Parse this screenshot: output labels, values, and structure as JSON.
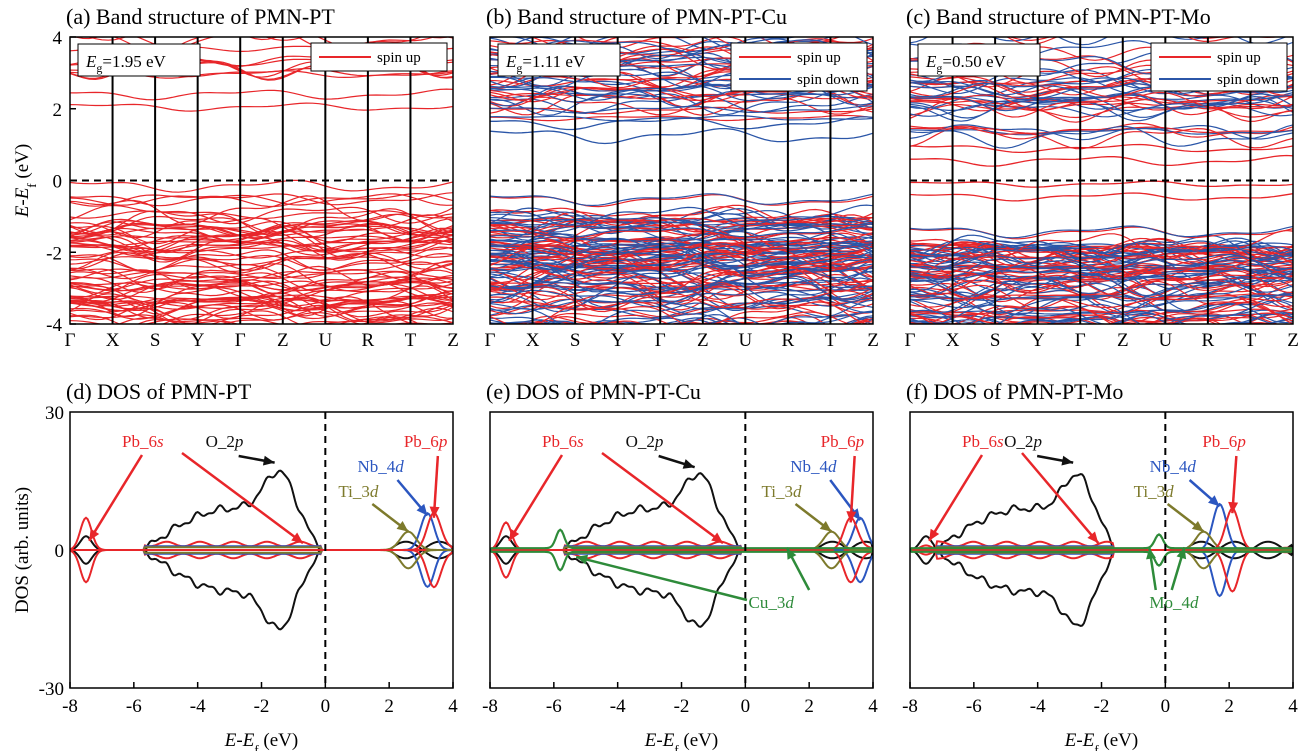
{
  "band": {
    "ylabel": "E-E_f (eV)",
    "kpoints": [
      "Γ",
      "X",
      "S",
      "Y",
      "Γ",
      "Z",
      "U",
      "R",
      "T",
      "Z"
    ],
    "yticks": [
      "4",
      "2",
      "0",
      "-2",
      "-4"
    ],
    "panels": [
      {
        "title": "(a) Band structure of PMN-PT",
        "gap_value": "=1.95 eV",
        "legend": [
          "spin up"
        ],
        "vbm": 0,
        "cbm": 1.95,
        "spin": "up"
      },
      {
        "title": "(b) Band structure of PMN-PT-Cu",
        "gap_value": "=1.11 eV",
        "legend": [
          "spin up",
          "spin down"
        ],
        "vbm": -0.4,
        "cbm": 1.11,
        "spin": "both"
      },
      {
        "title": "(c) Band structure of PMN-PT-Mo",
        "gap_value": "=0.50 eV",
        "legend": [
          "spin up",
          "spin down"
        ],
        "vbm": -1.3,
        "cbm": 0.5,
        "spin": "both"
      }
    ]
  },
  "dos": {
    "ylabel": "DOS (arb. units)",
    "xlabel": "E-E_f (eV)",
    "yticks": [
      "30",
      "0",
      "-30"
    ],
    "xticks": [
      "-8",
      "-6",
      "-4",
      "-2",
      "0",
      "2",
      "4"
    ],
    "panels": [
      {
        "title": "(d) DOS of PMN-PT",
        "labels": {
          "pb6s": "Pb_6s",
          "o2p": "O_2p",
          "nb4d": "Nb_4d",
          "ti3d": "Ti_3d",
          "pb6p": "Pb_6p"
        }
      },
      {
        "title": "(e) DOS of PMN-PT-Cu",
        "labels": {
          "pb6s": "Pb_6s",
          "o2p": "O_2p",
          "nb4d": "Nb_4d",
          "ti3d": "Ti_3d",
          "pb6p": "Pb_6p",
          "dopant": "Cu_3d"
        }
      },
      {
        "title": "(f) DOS of PMN-PT-Mo",
        "labels": {
          "pb6s": "Pb_6s",
          "o2p": "O_2p",
          "nb4d": "Nb_4d",
          "ti3d": "Ti_3d",
          "pb6p": "Pb_6p",
          "dopant": "Mo_4d"
        }
      }
    ]
  },
  "colors": {
    "spin_up": "#e8262a",
    "spin_down": "#2b56a8",
    "o2p": "#111111",
    "nb4d": "#2b56c0",
    "ti3d": "#7d7a2c",
    "dopant": "#2e8b3a"
  },
  "chart_data": [
    {
      "type": "line",
      "title": "(a) Band structure of PMN-PT",
      "ylabel": "E-E_f (eV)",
      "ylim": [
        -4,
        4
      ],
      "categories": [
        "Γ",
        "X",
        "S",
        "Y",
        "Γ",
        "Z",
        "U",
        "R",
        "T",
        "Z"
      ],
      "annotation": "E_g=1.95 eV",
      "series": [
        {
          "name": "spin up",
          "vbm": 0,
          "cbm": 1.95
        }
      ]
    },
    {
      "type": "line",
      "title": "(b) Band structure of PMN-PT-Cu",
      "ylabel": "E-E_f (eV)",
      "ylim": [
        -4,
        4
      ],
      "categories": [
        "Γ",
        "X",
        "S",
        "Y",
        "Γ",
        "Z",
        "U",
        "R",
        "T",
        "Z"
      ],
      "annotation": "E_g=1.11 eV",
      "series": [
        {
          "name": "spin up"
        },
        {
          "name": "spin down"
        }
      ]
    },
    {
      "type": "line",
      "title": "(c) Band structure of PMN-PT-Mo",
      "ylabel": "E-E_f (eV)",
      "ylim": [
        -4,
        4
      ],
      "categories": [
        "Γ",
        "X",
        "S",
        "Y",
        "Γ",
        "Z",
        "U",
        "R",
        "T",
        "Z"
      ],
      "annotation": "E_g=0.50 eV",
      "series": [
        {
          "name": "spin up"
        },
        {
          "name": "spin down"
        }
      ]
    },
    {
      "type": "line",
      "title": "(d) DOS of PMN-PT",
      "xlabel": "E-E_f (eV)",
      "ylabel": "DOS (arb. units)",
      "xlim": [
        -8,
        4
      ],
      "ylim": [
        -30,
        30
      ],
      "series": [
        {
          "name": "Pb_6s",
          "peak_x": -7.5,
          "peak_y": 7
        },
        {
          "name": "O_2p",
          "peak_x": -1.4,
          "peak_y": 20
        },
        {
          "name": "Nb_4d",
          "peak_x": 3.2,
          "peak_y": 8
        },
        {
          "name": "Ti_3d",
          "peak_x": 2.6,
          "peak_y": 4
        },
        {
          "name": "Pb_6p",
          "peak_x": 3.4,
          "peak_y": 8
        }
      ]
    },
    {
      "type": "line",
      "title": "(e) DOS of PMN-PT-Cu",
      "xlabel": "E-E_f (eV)",
      "ylabel": "DOS (arb. units)",
      "xlim": [
        -8,
        4
      ],
      "ylim": [
        -30,
        30
      ],
      "series": [
        {
          "name": "Pb_6s",
          "peak_x": -7.5,
          "peak_y": 6
        },
        {
          "name": "O_2p",
          "peak_x": -1.4,
          "peak_y": 19
        },
        {
          "name": "Nb_4d",
          "peak_x": 3.6,
          "peak_y": 7
        },
        {
          "name": "Ti_3d",
          "peak_x": 2.7,
          "peak_y": 4
        },
        {
          "name": "Pb_6p",
          "peak_x": 3.3,
          "peak_y": 7
        },
        {
          "name": "Cu_3d",
          "peak_x": -5.8,
          "peak_y": 4
        }
      ]
    },
    {
      "type": "line",
      "title": "(f) DOS of PMN-PT-Mo",
      "xlabel": "E-E_f (eV)",
      "ylabel": "DOS (arb. units)",
      "xlim": [
        -8,
        4
      ],
      "ylim": [
        -30,
        30
      ],
      "series": [
        {
          "name": "Pb_6s",
          "peak_x": -7.5,
          "peak_y": 1
        },
        {
          "name": "O_2p",
          "peak_x": -2.7,
          "peak_y": 20
        },
        {
          "name": "Nb_4d",
          "peak_x": 1.7,
          "peak_y": 10
        },
        {
          "name": "Ti_3d",
          "peak_x": 1.2,
          "peak_y": 4
        },
        {
          "name": "Pb_6p",
          "peak_x": 2.1,
          "peak_y": 9
        },
        {
          "name": "Mo_4d",
          "peak_x": -0.2,
          "peak_y": 3
        }
      ]
    }
  ]
}
